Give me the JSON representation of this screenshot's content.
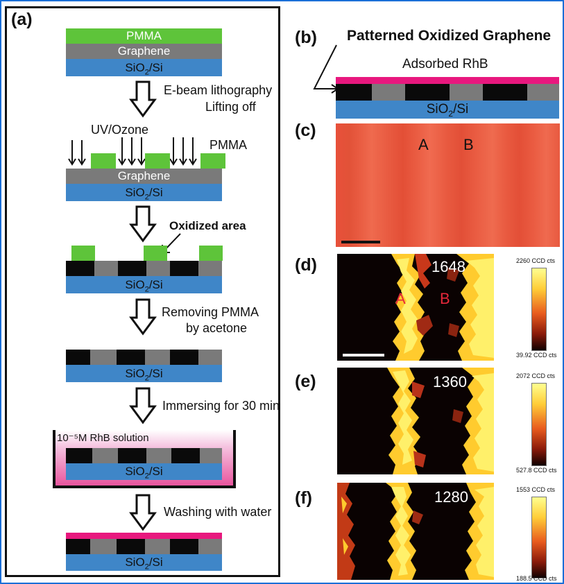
{
  "colors": {
    "pmma": "#5ec43a",
    "graphene": "#7a7a7a",
    "substrate": "#3f86c8",
    "oxidized": "#0a0a0a",
    "rhb": "#e8187e",
    "bath": "#f2a6d0",
    "frame": "#1a6fd8"
  },
  "panel_a": {
    "label": "(a)",
    "layers": {
      "pmma": "PMMA",
      "graphene": "Graphene",
      "substrate": "SiO2/Si"
    },
    "steps": {
      "s1_line1": "E-beam lithography",
      "s1_line2": "Lifting off",
      "uv_label": "UV/Ozone",
      "pmma_label": "PMMA",
      "oxidized_label": "Oxidized area",
      "s2_line1": "Removing  PMMA",
      "s2_line2": "by acetone",
      "s3": "Immersing for 30 min",
      "rhb_solution": "10⁻⁵M RhB solution",
      "s4": "Washing with water"
    }
  },
  "panel_b": {
    "label": "(b)",
    "title": "Patterned Oxidized Graphene",
    "adsorbed": "Adsorbed RhB",
    "substrate": "SiO2/Si"
  },
  "panel_c": {
    "label": "(c)",
    "mark_a": "A",
    "mark_b": "B"
  },
  "panel_d": {
    "label": "(d)",
    "value": "1648",
    "mark_a": "A",
    "mark_b": "B",
    "scale_max": "2260 CCD cts",
    "scale_min": "39.92 CCD cts"
  },
  "panel_e": {
    "label": "(e)",
    "value": "1360",
    "scale_max": "2072 CCD cts",
    "scale_min": "527.8 CCD cts"
  },
  "panel_f": {
    "label": "(f)",
    "value": "1280",
    "scale_max": "1553 CCD cts",
    "scale_min": "188.5 CCD cts"
  }
}
